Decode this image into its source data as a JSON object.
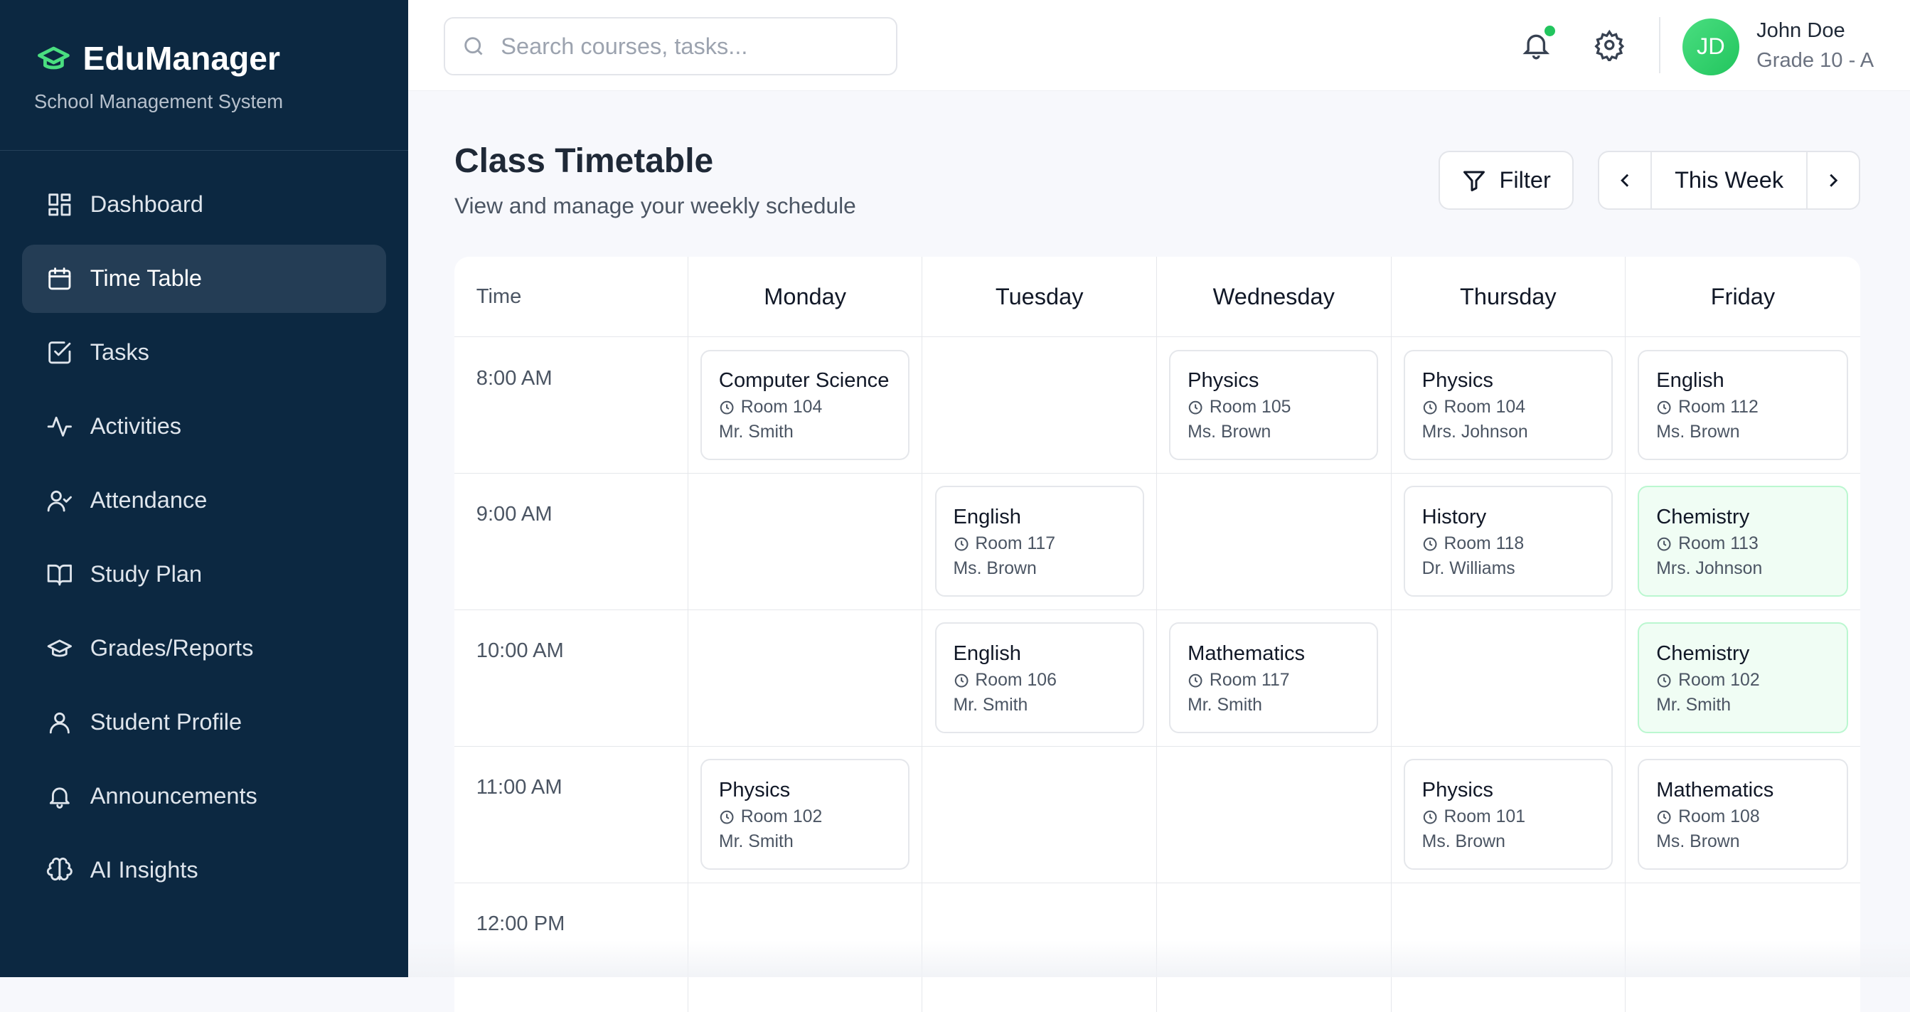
{
  "sidebar": {
    "brand": "EduManager",
    "tagline": "School Management System",
    "items": [
      {
        "label": "Dashboard",
        "icon": "dashboard-icon"
      },
      {
        "label": "Time Table",
        "icon": "calendar-icon",
        "active": true
      },
      {
        "label": "Tasks",
        "icon": "checkbox-icon"
      },
      {
        "label": "Activities",
        "icon": "activity-icon"
      },
      {
        "label": "Attendance",
        "icon": "user-check-icon"
      },
      {
        "label": "Study Plan",
        "icon": "book-icon"
      },
      {
        "label": "Grades/Reports",
        "icon": "graduation-cap-icon"
      },
      {
        "label": "Student Profile",
        "icon": "user-icon"
      },
      {
        "label": "Announcements",
        "icon": "bell-icon"
      },
      {
        "label": "AI Insights",
        "icon": "brain-icon"
      }
    ]
  },
  "header": {
    "search_placeholder": "Search courses, tasks...",
    "user": {
      "initials": "JD",
      "name": "John Doe",
      "grade": "Grade 10 - A"
    }
  },
  "page": {
    "title": "Class Timetable",
    "subtitle": "View and manage your weekly schedule",
    "filter_label": "Filter",
    "week_label": "This Week"
  },
  "timetable": {
    "time_header": "Time",
    "days": [
      "Monday",
      "Tuesday",
      "Wednesday",
      "Thursday",
      "Friday"
    ],
    "times": [
      "8:00 AM",
      "9:00 AM",
      "10:00 AM",
      "11:00 AM",
      "12:00 PM"
    ],
    "slots": [
      [
        {
          "subject": "Computer Science",
          "room": "Room 104",
          "teacher": "Mr. Smith"
        },
        null,
        {
          "subject": "Physics",
          "room": "Room 105",
          "teacher": "Ms. Brown"
        },
        {
          "subject": "Physics",
          "room": "Room 104",
          "teacher": "Mrs. Johnson"
        },
        {
          "subject": "English",
          "room": "Room 112",
          "teacher": "Ms. Brown"
        }
      ],
      [
        null,
        {
          "subject": "English",
          "room": "Room 117",
          "teacher": "Ms. Brown"
        },
        null,
        {
          "subject": "History",
          "room": "Room 118",
          "teacher": "Dr. Williams"
        },
        {
          "subject": "Chemistry",
          "room": "Room 113",
          "teacher": "Mrs. Johnson",
          "highlight": true
        }
      ],
      [
        null,
        {
          "subject": "English",
          "room": "Room 106",
          "teacher": "Mr. Smith"
        },
        {
          "subject": "Mathematics",
          "room": "Room 117",
          "teacher": "Mr. Smith"
        },
        null,
        {
          "subject": "Chemistry",
          "room": "Room 102",
          "teacher": "Mr. Smith",
          "highlight": true
        }
      ],
      [
        {
          "subject": "Physics",
          "room": "Room 102",
          "teacher": "Mr. Smith"
        },
        null,
        null,
        {
          "subject": "Physics",
          "room": "Room 101",
          "teacher": "Ms. Brown"
        },
        {
          "subject": "Mathematics",
          "room": "Room 108",
          "teacher": "Ms. Brown"
        }
      ],
      [
        null,
        null,
        null,
        null,
        null
      ]
    ]
  },
  "colors": {
    "sidebar": "#0c2841",
    "accent": "#22c55e",
    "highlight_bg": "#f0fdf4"
  }
}
